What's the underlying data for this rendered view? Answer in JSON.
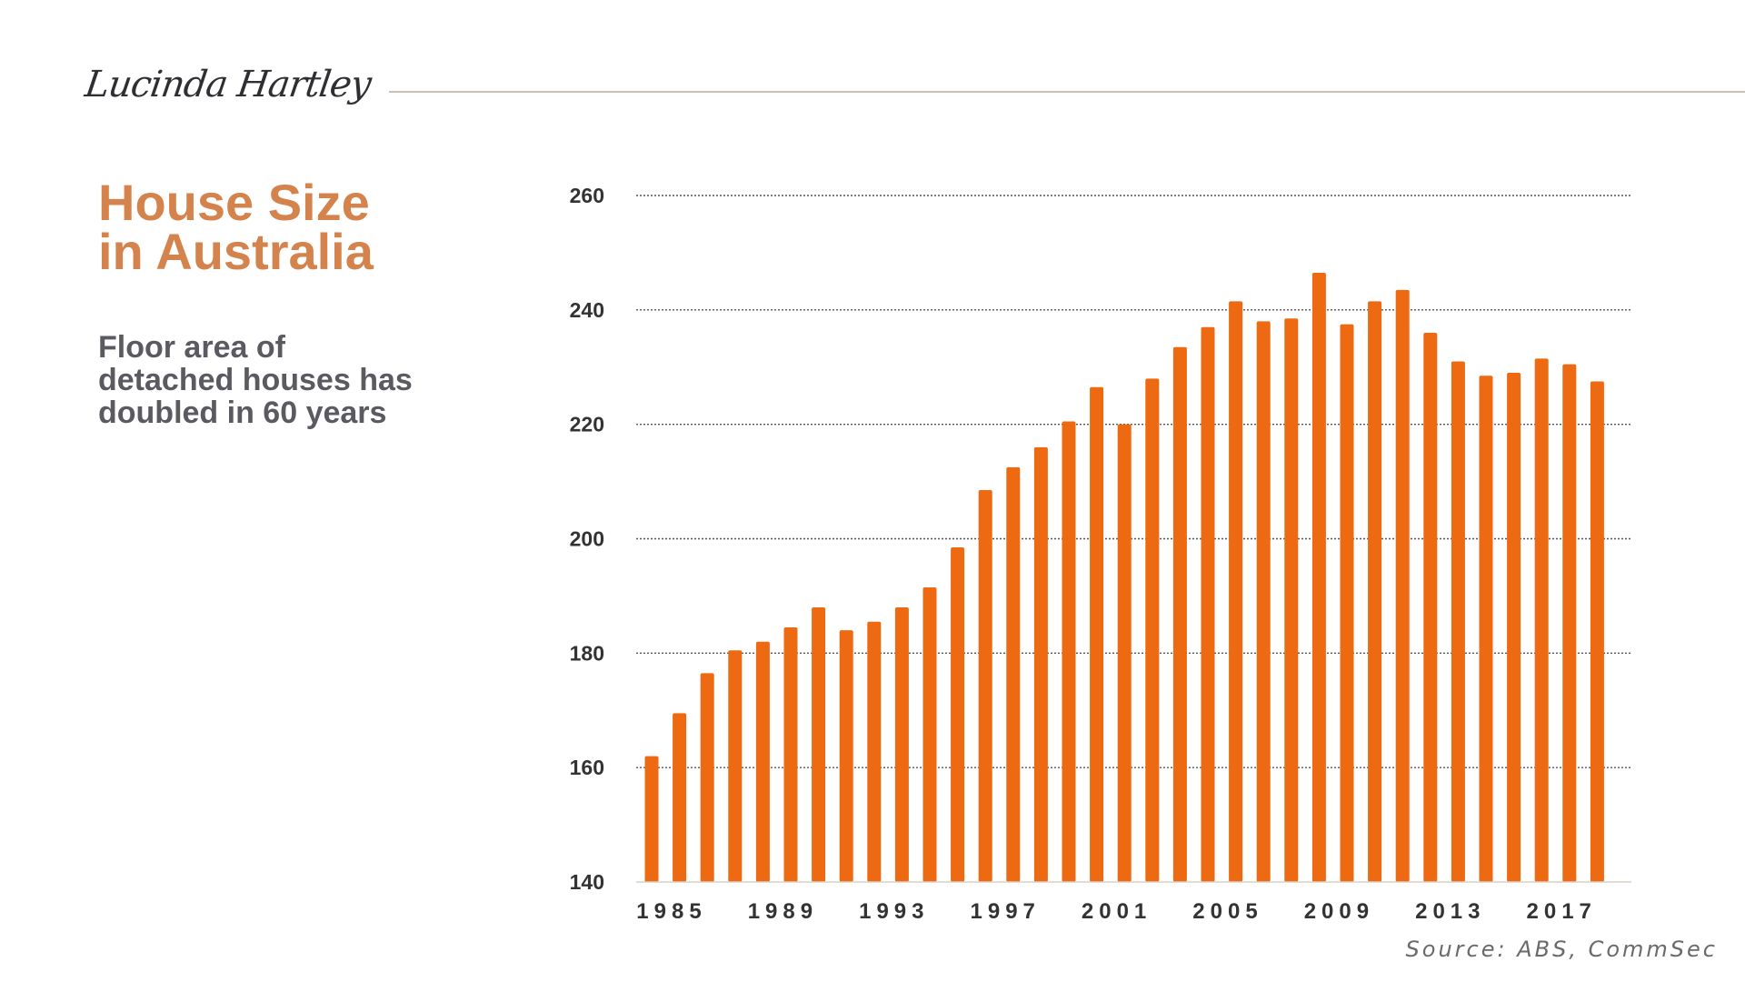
{
  "brand": {
    "name": "Lucinda Hartley"
  },
  "heading": {
    "title_line1": "House Size",
    "title_line2": "in Australia",
    "subtitle_line1": "Floor area of",
    "subtitle_line2": "detached houses has",
    "subtitle_line3": "doubled in 60 years"
  },
  "source": "Source: ABS, CommSec",
  "colors": {
    "bar": "#ed6a12",
    "title": "#d4834c",
    "subtitle": "#5a5a60",
    "grid": "#555555"
  },
  "chart_data": {
    "type": "bar",
    "title": "",
    "xlabel": "",
    "ylabel": "",
    "ylim": [
      140,
      260
    ],
    "yticks": [
      140,
      160,
      180,
      200,
      220,
      240,
      260
    ],
    "grid": true,
    "grid_style": "dotted",
    "categories": [
      "1985",
      "1986",
      "1987",
      "1988",
      "1989",
      "1990",
      "1991",
      "1992",
      "1993",
      "1994",
      "1995",
      "1996",
      "1997",
      "1998",
      "1999",
      "2000",
      "2001",
      "2002",
      "2003",
      "2004",
      "2005",
      "2006",
      "2007",
      "2008",
      "2009",
      "2010",
      "2011",
      "2012",
      "2013",
      "2014",
      "2015",
      "2016",
      "2017",
      "2018",
      "2019"
    ],
    "xtick_labels": [
      {
        "index": 0,
        "label": "1985"
      },
      {
        "index": 4,
        "label": "1989"
      },
      {
        "index": 8,
        "label": "1993"
      },
      {
        "index": 12,
        "label": "1997"
      },
      {
        "index": 16,
        "label": "2001"
      },
      {
        "index": 20,
        "label": "2005"
      },
      {
        "index": 24,
        "label": "2009"
      },
      {
        "index": 28,
        "label": "2013"
      },
      {
        "index": 32,
        "label": "2017"
      }
    ],
    "values": [
      162,
      169.5,
      176.5,
      180.5,
      182,
      184.5,
      188,
      184,
      185.5,
      188,
      191.5,
      198.5,
      208.5,
      212.5,
      216,
      220.5,
      226.5,
      220,
      228,
      233.5,
      237,
      241.5,
      238,
      238.5,
      246.5,
      237.5,
      241.5,
      243.5,
      236,
      231,
      228.5,
      229,
      231.5,
      230.5,
      227.5
    ]
  }
}
